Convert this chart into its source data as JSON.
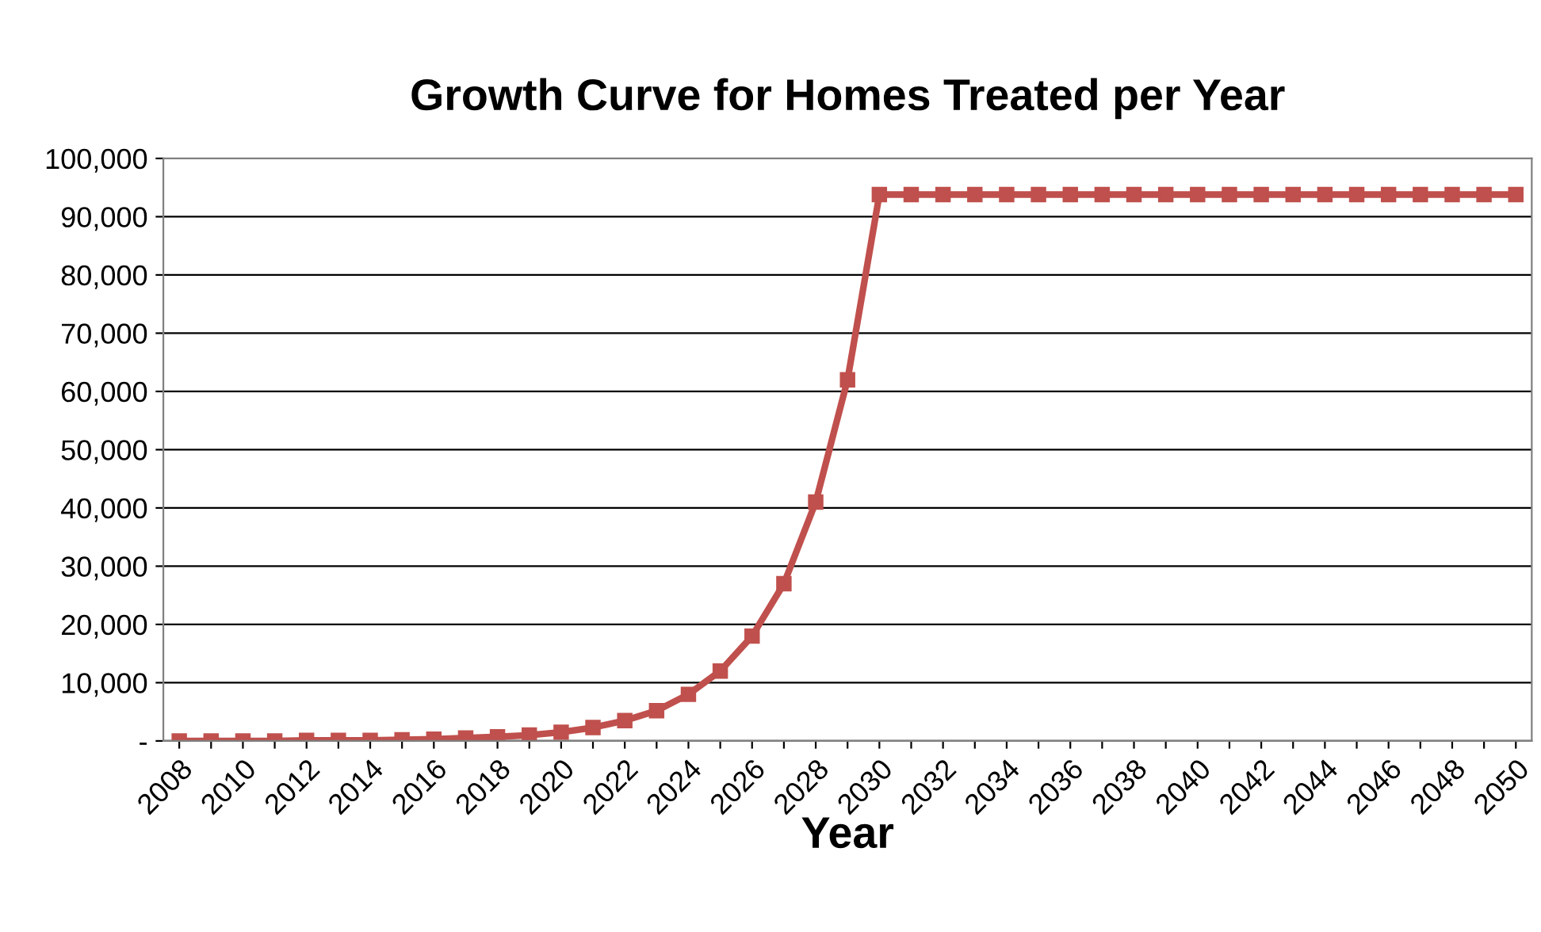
{
  "chart_data": {
    "type": "line",
    "title": "Growth Curve for Homes Treated per Year",
    "xlabel": "Year",
    "categories": [
      "2008",
      null,
      "2010",
      null,
      "2012",
      null,
      "2014",
      null,
      "2016",
      null,
      "2018",
      null,
      "2020",
      null,
      "2022",
      null,
      "2024",
      null,
      "2026",
      null,
      "2028",
      null,
      "2030",
      null,
      "2032",
      null,
      "2034",
      null,
      "2036",
      null,
      "2038",
      null,
      "2040",
      null,
      "2042",
      null,
      "2044",
      null,
      "2046",
      null,
      "2048",
      null,
      "2050"
    ],
    "series": [
      {
        "color": "#c0504d",
        "values": [
          0,
          0,
          0,
          0,
          100,
          100,
          100,
          200,
          300,
          500,
          700,
          1000,
          1500,
          2300,
          3500,
          5200,
          8000,
          12000,
          18000,
          27000,
          41000,
          62000,
          93800,
          93800,
          93800,
          93800,
          93800,
          93800,
          93800,
          93800,
          93800,
          93800,
          93800,
          93800,
          93800,
          93800,
          93800,
          93800,
          93800,
          93800,
          93800,
          93800,
          93800
        ]
      }
    ],
    "ylim": [
      0,
      100000
    ],
    "yticks": [
      {
        "value": 0,
        "label": "-"
      },
      {
        "value": 10000,
        "label": "10,000"
      },
      {
        "value": 20000,
        "label": "20,000"
      },
      {
        "value": 30000,
        "label": "30,000"
      },
      {
        "value": 40000,
        "label": "40,000"
      },
      {
        "value": 50000,
        "label": "50,000"
      },
      {
        "value": 60000,
        "label": "60,000"
      },
      {
        "value": 70000,
        "label": "70,000"
      },
      {
        "value": 80000,
        "label": "80,000"
      },
      {
        "value": 90000,
        "label": "90,000"
      },
      {
        "value": 100000,
        "label": "100,000"
      }
    ],
    "grid": "y",
    "marker": "square",
    "line_style": "solid"
  }
}
